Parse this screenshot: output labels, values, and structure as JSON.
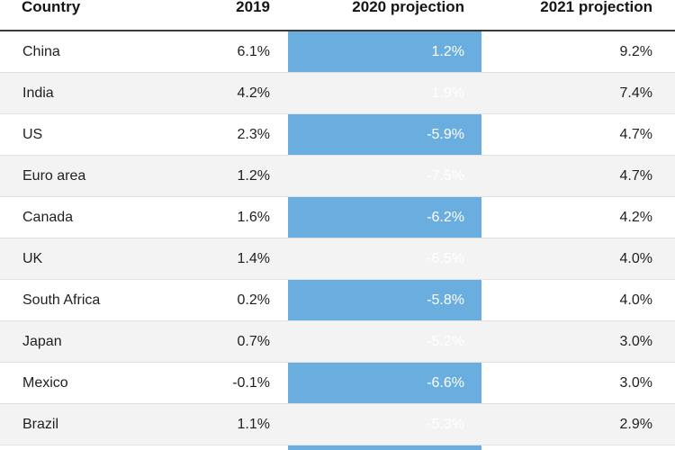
{
  "chart_data": {
    "type": "table",
    "columns": [
      "Country",
      "2019",
      "2020 projection",
      "2021 projection"
    ],
    "rows": [
      {
        "country": "China",
        "y2019": "6.1%",
        "y2020": "1.2%",
        "y2021": "9.2%"
      },
      {
        "country": "India",
        "y2019": "4.2%",
        "y2020": "1.9%",
        "y2021": "7.4%"
      },
      {
        "country": "US",
        "y2019": "2.3%",
        "y2020": "-5.9%",
        "y2021": "4.7%"
      },
      {
        "country": "Euro area",
        "y2019": "1.2%",
        "y2020": "-7.5%",
        "y2021": "4.7%"
      },
      {
        "country": "Canada",
        "y2019": "1.6%",
        "y2020": "-6.2%",
        "y2021": "4.2%"
      },
      {
        "country": "UK",
        "y2019": "1.4%",
        "y2020": "-6.5%",
        "y2021": "4.0%"
      },
      {
        "country": "South Africa",
        "y2019": "0.2%",
        "y2020": "-5.8%",
        "y2021": "4.0%"
      },
      {
        "country": "Japan",
        "y2019": "0.7%",
        "y2020": "-5.2%",
        "y2021": "3.0%"
      },
      {
        "country": "Mexico",
        "y2019": "-0.1%",
        "y2020": "-6.6%",
        "y2021": "3.0%"
      },
      {
        "country": "Brazil",
        "y2019": "1.1%",
        "y2020": "-5.3%",
        "y2021": "2.9%"
      }
    ],
    "highlight_column": "2020 projection",
    "colors": {
      "highlight": "#6aaee0",
      "alt_row": "#f3f3f3",
      "header_rule": "#3a3a3a",
      "row_rule": "#e1e1e1"
    }
  }
}
